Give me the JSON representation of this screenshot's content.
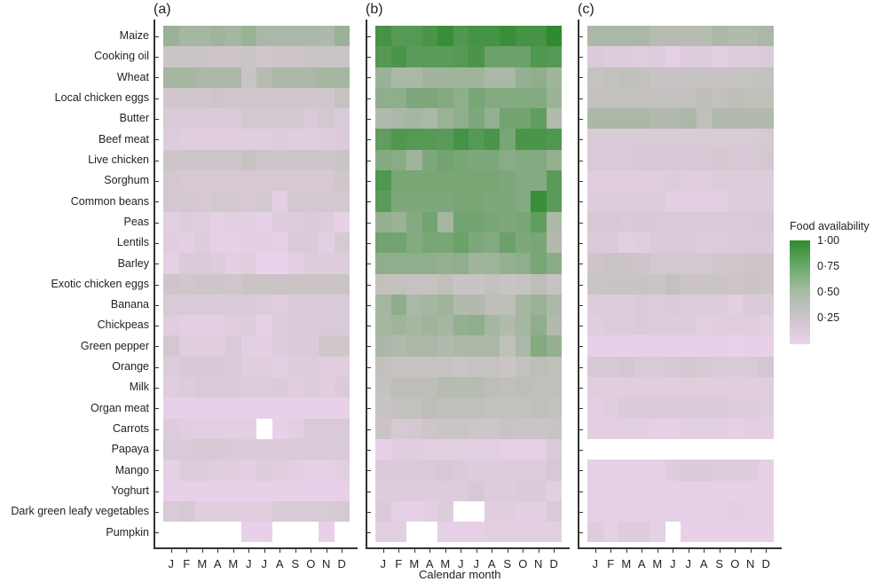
{
  "chart_data": {
    "type": "heatmap",
    "title": "",
    "xlabel": "Calendar month",
    "ylabel": "",
    "legend": {
      "title": "Food availability",
      "ticks": [
        "1·00",
        "0·75",
        "0·50",
        "0·25"
      ],
      "range": [
        0.15,
        1.0
      ],
      "position": "right",
      "colors": {
        "low": "#ecd3ec",
        "mid": "#bfbfbf",
        "high": "#2e8b2e"
      }
    },
    "months": [
      "J",
      "F",
      "M",
      "A",
      "M",
      "J",
      "J",
      "A",
      "S",
      "O",
      "N",
      "D"
    ],
    "rows": [
      "Maize",
      "Cooking oil",
      "Wheat",
      "Local chicken eggs",
      "Butter",
      "Beef meat",
      "Live chicken",
      "Sorghum",
      "Common beans",
      "Peas",
      "Lentils",
      "Barley",
      "Exotic chicken eggs",
      "Banana",
      "Chickpeas",
      "Green pepper",
      "Orange",
      "Milk",
      "Organ meat",
      "Carrots",
      "Papaya",
      "Mango",
      "Yoghurt",
      "Dark green leafy vegetables",
      "Pumpkin"
    ],
    "panels": [
      {
        "label": "(a)",
        "values": [
          [
            0.62,
            0.58,
            0.58,
            0.6,
            0.58,
            0.62,
            0.56,
            0.56,
            0.56,
            0.56,
            0.55,
            0.62
          ],
          [
            0.4,
            0.4,
            0.4,
            0.38,
            0.38,
            0.4,
            0.36,
            0.38,
            0.38,
            0.4,
            0.4,
            0.4
          ],
          [
            0.58,
            0.58,
            0.56,
            0.56,
            0.56,
            0.42,
            0.52,
            0.56,
            0.56,
            0.56,
            0.58,
            0.58
          ],
          [
            0.36,
            0.36,
            0.36,
            0.38,
            0.36,
            0.36,
            0.36,
            0.36,
            0.36,
            0.36,
            0.36,
            0.44
          ],
          [
            0.3,
            0.3,
            0.3,
            0.3,
            0.3,
            0.34,
            0.34,
            0.34,
            0.34,
            0.3,
            0.34,
            0.3
          ],
          [
            0.26,
            0.24,
            0.24,
            0.24,
            0.24,
            0.24,
            0.24,
            0.26,
            0.24,
            0.24,
            0.26,
            0.28
          ],
          [
            0.38,
            0.38,
            0.38,
            0.38,
            0.38,
            0.44,
            0.38,
            0.38,
            0.38,
            0.38,
            0.38,
            0.4
          ],
          [
            0.34,
            0.32,
            0.32,
            0.32,
            0.32,
            0.32,
            0.32,
            0.32,
            0.32,
            0.32,
            0.32,
            0.36
          ],
          [
            0.34,
            0.34,
            0.32,
            0.34,
            0.34,
            0.32,
            0.34,
            0.22,
            0.34,
            0.34,
            0.34,
            0.34
          ],
          [
            0.22,
            0.26,
            0.24,
            0.2,
            0.22,
            0.22,
            0.2,
            0.26,
            0.26,
            0.28,
            0.26,
            0.18
          ],
          [
            0.24,
            0.22,
            0.26,
            0.2,
            0.2,
            0.22,
            0.22,
            0.2,
            0.28,
            0.28,
            0.22,
            0.32
          ],
          [
            0.2,
            0.28,
            0.28,
            0.26,
            0.22,
            0.24,
            0.16,
            0.16,
            0.22,
            0.26,
            0.26,
            0.26
          ],
          [
            0.38,
            0.36,
            0.38,
            0.38,
            0.36,
            0.4,
            0.4,
            0.4,
            0.4,
            0.4,
            0.4,
            0.4
          ],
          [
            0.3,
            0.3,
            0.3,
            0.28,
            0.3,
            0.3,
            0.26,
            0.24,
            0.28,
            0.28,
            0.28,
            0.3
          ],
          [
            0.24,
            0.22,
            0.22,
            0.22,
            0.24,
            0.26,
            0.2,
            0.26,
            0.28,
            0.28,
            0.3,
            0.3
          ],
          [
            0.34,
            0.24,
            0.24,
            0.24,
            0.3,
            0.22,
            0.22,
            0.26,
            0.28,
            0.28,
            0.36,
            0.36
          ],
          [
            0.26,
            0.32,
            0.32,
            0.32,
            0.28,
            0.24,
            0.24,
            0.22,
            0.26,
            0.26,
            0.24,
            0.24
          ],
          [
            0.24,
            0.26,
            0.3,
            0.3,
            0.3,
            0.26,
            0.26,
            0.28,
            0.24,
            0.26,
            0.24,
            0.28
          ],
          [
            0.18,
            0.18,
            0.18,
            0.18,
            0.18,
            0.18,
            0.18,
            0.18,
            0.18,
            0.18,
            0.18,
            0.18
          ],
          [
            0.26,
            0.24,
            0.22,
            0.22,
            0.22,
            0.22,
            null,
            0.18,
            0.22,
            0.3,
            0.3,
            0.3
          ],
          [
            0.3,
            0.3,
            0.32,
            0.32,
            0.3,
            0.28,
            0.28,
            0.28,
            0.3,
            0.3,
            0.3,
            0.3
          ],
          [
            0.2,
            0.26,
            0.26,
            0.24,
            0.24,
            0.22,
            0.26,
            0.24,
            0.22,
            0.2,
            0.2,
            0.22
          ],
          [
            0.18,
            0.18,
            0.18,
            0.18,
            0.18,
            0.18,
            0.18,
            0.18,
            0.18,
            0.18,
            0.18,
            0.18
          ],
          [
            0.3,
            0.32,
            0.24,
            0.24,
            0.24,
            0.24,
            0.24,
            0.3,
            0.3,
            0.3,
            0.3,
            0.32
          ],
          [
            null,
            null,
            null,
            null,
            null,
            0.18,
            0.18,
            null,
            null,
            null,
            0.18,
            null
          ]
        ]
      },
      {
        "label": "(b)",
        "values": [
          [
            0.92,
            0.86,
            0.86,
            0.9,
            0.96,
            0.88,
            0.92,
            0.92,
            0.96,
            0.92,
            0.92,
            1.0
          ],
          [
            0.86,
            0.9,
            0.84,
            0.84,
            0.84,
            0.86,
            0.9,
            0.78,
            0.78,
            0.78,
            0.88,
            0.86
          ],
          [
            0.62,
            0.56,
            0.56,
            0.6,
            0.6,
            0.6,
            0.6,
            0.56,
            0.56,
            0.64,
            0.66,
            0.6
          ],
          [
            0.66,
            0.66,
            0.72,
            0.72,
            0.7,
            0.66,
            0.74,
            0.7,
            0.7,
            0.7,
            0.7,
            0.62
          ],
          [
            0.54,
            0.56,
            0.58,
            0.56,
            0.62,
            0.66,
            0.72,
            0.64,
            0.76,
            0.76,
            0.82,
            0.54
          ],
          [
            0.82,
            0.88,
            0.86,
            0.86,
            0.84,
            0.92,
            0.86,
            0.9,
            0.74,
            0.9,
            0.9,
            0.88
          ],
          [
            0.7,
            0.68,
            0.6,
            0.72,
            0.76,
            0.74,
            0.72,
            0.72,
            0.68,
            0.7,
            0.7,
            0.64
          ],
          [
            0.88,
            0.74,
            0.74,
            0.74,
            0.74,
            0.74,
            0.74,
            0.74,
            0.72,
            0.7,
            0.7,
            0.84
          ],
          [
            0.84,
            0.72,
            0.72,
            0.72,
            0.72,
            0.74,
            0.74,
            0.72,
            0.72,
            0.7,
            0.96,
            0.84
          ],
          [
            0.64,
            0.62,
            0.7,
            0.76,
            0.58,
            0.76,
            0.76,
            0.74,
            0.72,
            0.74,
            0.82,
            0.56
          ],
          [
            0.76,
            0.76,
            0.7,
            0.74,
            0.74,
            0.78,
            0.72,
            0.7,
            0.78,
            0.72,
            0.74,
            0.54
          ],
          [
            0.66,
            0.66,
            0.66,
            0.66,
            0.64,
            0.66,
            0.6,
            0.6,
            0.64,
            0.66,
            0.74,
            0.68
          ],
          [
            0.46,
            0.46,
            0.44,
            0.44,
            0.48,
            0.42,
            0.42,
            0.46,
            0.42,
            0.44,
            0.5,
            0.44
          ],
          [
            0.58,
            0.66,
            0.56,
            0.58,
            0.6,
            0.54,
            0.54,
            0.5,
            0.5,
            0.58,
            0.62,
            0.56
          ],
          [
            0.58,
            0.6,
            0.58,
            0.6,
            0.58,
            0.64,
            0.66,
            0.58,
            0.54,
            0.58,
            0.66,
            0.54
          ],
          [
            0.56,
            0.54,
            0.56,
            0.56,
            0.54,
            0.56,
            0.56,
            0.56,
            0.48,
            0.56,
            0.7,
            0.64
          ],
          [
            0.46,
            0.44,
            0.44,
            0.44,
            0.44,
            0.4,
            0.44,
            0.44,
            0.4,
            0.46,
            0.5,
            0.48
          ],
          [
            0.44,
            0.5,
            0.5,
            0.5,
            0.52,
            0.52,
            0.52,
            0.5,
            0.48,
            0.5,
            0.48,
            0.48
          ],
          [
            0.42,
            0.46,
            0.46,
            0.5,
            0.48,
            0.48,
            0.48,
            0.46,
            0.46,
            0.46,
            0.48,
            0.46
          ],
          [
            0.4,
            0.32,
            0.34,
            0.38,
            0.4,
            0.4,
            0.38,
            0.38,
            0.42,
            0.4,
            0.4,
            0.42
          ],
          [
            0.18,
            0.24,
            0.24,
            0.22,
            0.22,
            0.22,
            0.22,
            0.22,
            0.2,
            0.2,
            0.2,
            0.3
          ],
          [
            0.28,
            0.28,
            0.3,
            0.3,
            0.32,
            0.28,
            0.26,
            0.26,
            0.26,
            0.26,
            0.26,
            0.32
          ],
          [
            0.26,
            0.26,
            0.26,
            0.26,
            0.26,
            0.26,
            0.32,
            0.26,
            0.26,
            0.28,
            0.28,
            0.22
          ],
          [
            0.28,
            0.2,
            0.18,
            0.22,
            0.26,
            null,
            null,
            0.24,
            0.24,
            0.22,
            0.22,
            0.3
          ],
          [
            0.22,
            0.22,
            null,
            null,
            0.2,
            0.2,
            0.2,
            0.22,
            0.22,
            0.22,
            0.22,
            0.22
          ]
        ]
      },
      {
        "label": "(c)",
        "values": [
          [
            0.56,
            0.56,
            0.56,
            0.56,
            0.52,
            0.52,
            0.52,
            0.52,
            0.56,
            0.54,
            0.54,
            0.56
          ],
          [
            0.28,
            0.26,
            0.26,
            0.24,
            0.26,
            0.2,
            0.26,
            0.26,
            0.22,
            0.26,
            0.26,
            0.28
          ],
          [
            0.44,
            0.46,
            0.48,
            0.46,
            0.42,
            0.42,
            0.42,
            0.42,
            0.42,
            0.42,
            0.44,
            0.46
          ],
          [
            0.46,
            0.46,
            0.46,
            0.46,
            0.46,
            0.46,
            0.46,
            0.5,
            0.46,
            0.5,
            0.48,
            0.48
          ],
          [
            0.56,
            0.56,
            0.56,
            0.56,
            0.54,
            0.54,
            0.56,
            0.48,
            0.54,
            0.54,
            0.54,
            0.54
          ],
          [
            0.3,
            0.3,
            0.3,
            0.3,
            0.3,
            0.3,
            0.3,
            0.3,
            0.3,
            0.3,
            0.3,
            0.32
          ],
          [
            0.3,
            0.3,
            0.3,
            0.32,
            0.32,
            0.32,
            0.32,
            0.32,
            0.34,
            0.32,
            0.32,
            0.34
          ],
          [
            0.24,
            0.24,
            0.24,
            0.24,
            0.24,
            0.26,
            0.24,
            0.24,
            0.26,
            0.26,
            0.26,
            0.26
          ],
          [
            0.26,
            0.26,
            0.26,
            0.26,
            0.26,
            0.22,
            0.22,
            0.22,
            0.22,
            0.26,
            0.26,
            0.26
          ],
          [
            0.32,
            0.32,
            0.3,
            0.32,
            0.3,
            0.3,
            0.3,
            0.3,
            0.3,
            0.3,
            0.3,
            0.32
          ],
          [
            0.28,
            0.28,
            0.22,
            0.24,
            0.28,
            0.28,
            0.28,
            0.26,
            0.26,
            0.28,
            0.28,
            0.28
          ],
          [
            0.38,
            0.4,
            0.4,
            0.38,
            0.34,
            0.34,
            0.34,
            0.34,
            0.36,
            0.36,
            0.38,
            0.38
          ],
          [
            0.4,
            0.42,
            0.42,
            0.42,
            0.4,
            0.46,
            0.4,
            0.4,
            0.4,
            0.38,
            0.4,
            0.38
          ],
          [
            0.26,
            0.26,
            0.26,
            0.28,
            0.26,
            0.28,
            0.26,
            0.26,
            0.26,
            0.22,
            0.28,
            0.28
          ],
          [
            0.24,
            0.26,
            0.26,
            0.28,
            0.26,
            0.26,
            0.26,
            0.22,
            0.24,
            0.24,
            0.24,
            0.22
          ],
          [
            0.18,
            0.18,
            0.18,
            0.18,
            0.18,
            0.18,
            0.18,
            0.18,
            0.18,
            0.16,
            0.18,
            0.18
          ],
          [
            0.32,
            0.32,
            0.34,
            0.3,
            0.3,
            0.32,
            0.34,
            0.32,
            0.3,
            0.28,
            0.3,
            0.34
          ],
          [
            0.24,
            0.24,
            0.24,
            0.24,
            0.24,
            0.24,
            0.24,
            0.24,
            0.24,
            0.24,
            0.24,
            0.24
          ],
          [
            0.22,
            0.24,
            0.28,
            0.28,
            0.28,
            0.28,
            0.28,
            0.28,
            0.28,
            0.26,
            0.26,
            0.24
          ],
          [
            0.22,
            0.22,
            0.22,
            0.22,
            0.2,
            0.2,
            0.22,
            0.22,
            0.22,
            0.2,
            0.22,
            0.22
          ],
          [
            null,
            null,
            null,
            null,
            null,
            null,
            null,
            null,
            null,
            null,
            null,
            null
          ],
          [
            0.2,
            0.2,
            0.2,
            0.2,
            0.2,
            0.26,
            0.28,
            0.28,
            0.26,
            0.26,
            0.26,
            0.2
          ],
          [
            0.2,
            0.2,
            0.2,
            0.2,
            0.2,
            0.2,
            0.2,
            0.2,
            0.2,
            0.2,
            0.2,
            0.2
          ],
          [
            0.2,
            0.2,
            0.2,
            0.2,
            0.2,
            0.2,
            0.2,
            0.2,
            0.2,
            0.22,
            0.2,
            0.2
          ],
          [
            0.26,
            0.2,
            0.26,
            0.26,
            0.2,
            null,
            0.18,
            0.18,
            0.18,
            0.18,
            0.18,
            0.18
          ]
        ]
      }
    ]
  }
}
